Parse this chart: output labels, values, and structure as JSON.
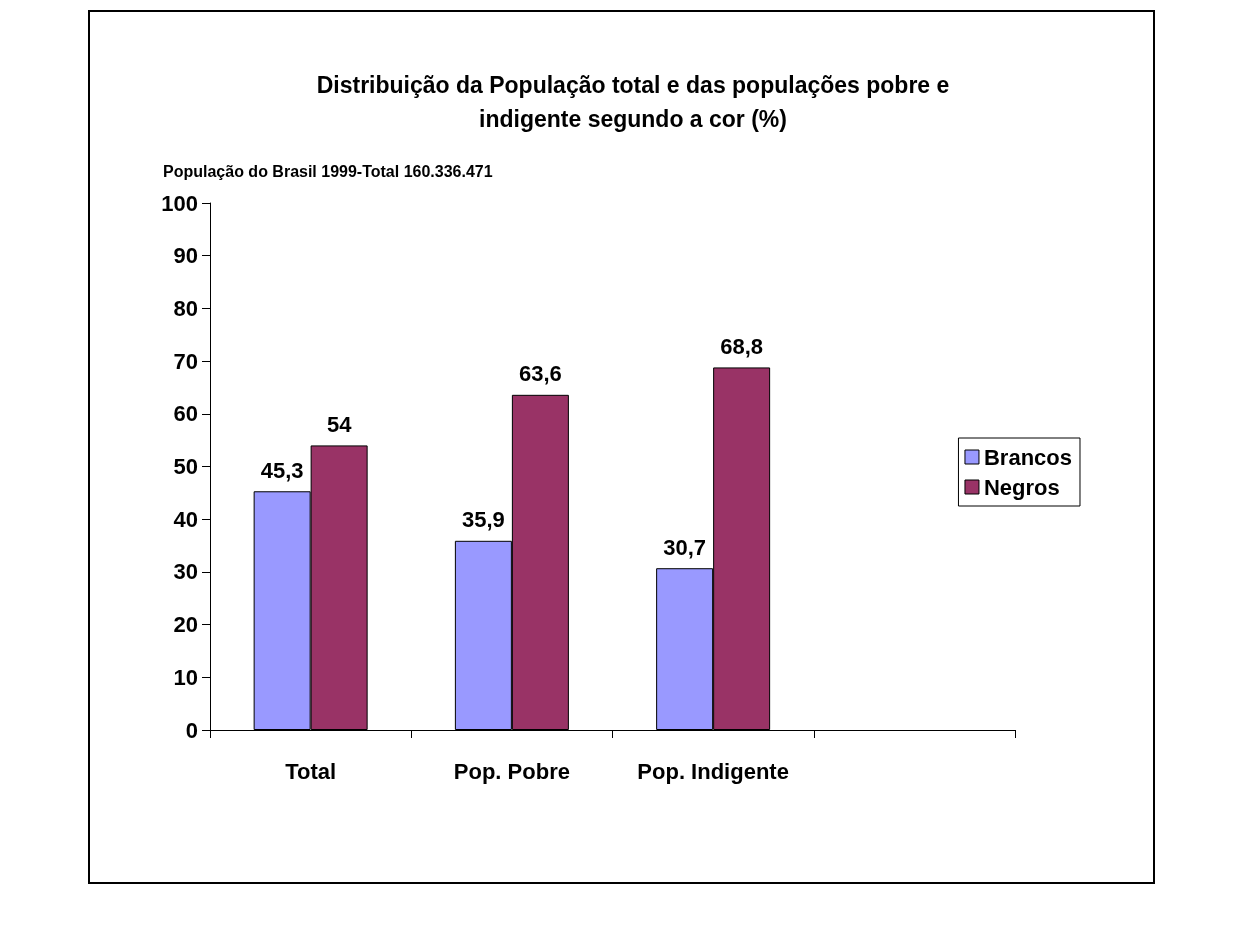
{
  "chart_data": {
    "type": "bar",
    "title": "Distribuição da População total e das populações pobre e\nindigente segundo a cor (%)",
    "subtitle": "População do Brasil 1999-Total 160.336.471",
    "categories": [
      "Total",
      "Pop. Pobre",
      "Pop. Indigente",
      null
    ],
    "series": [
      {
        "name": "Brancos",
        "color": "#9999ff",
        "values": [
          45.3,
          35.9,
          30.7,
          null
        ],
        "value_labels": [
          "45,3",
          "35,9",
          "30,7",
          null
        ]
      },
      {
        "name": "Negros",
        "color": "#993366",
        "values": [
          54,
          63.6,
          68.8,
          null
        ],
        "value_labels": [
          "54",
          "63,6",
          "68,8",
          null
        ]
      }
    ],
    "ylim": [
      0,
      100
    ],
    "yticks": [
      0,
      10,
      20,
      30,
      40,
      50,
      60,
      70,
      80,
      90,
      100
    ],
    "grid": false,
    "legend": "right"
  }
}
